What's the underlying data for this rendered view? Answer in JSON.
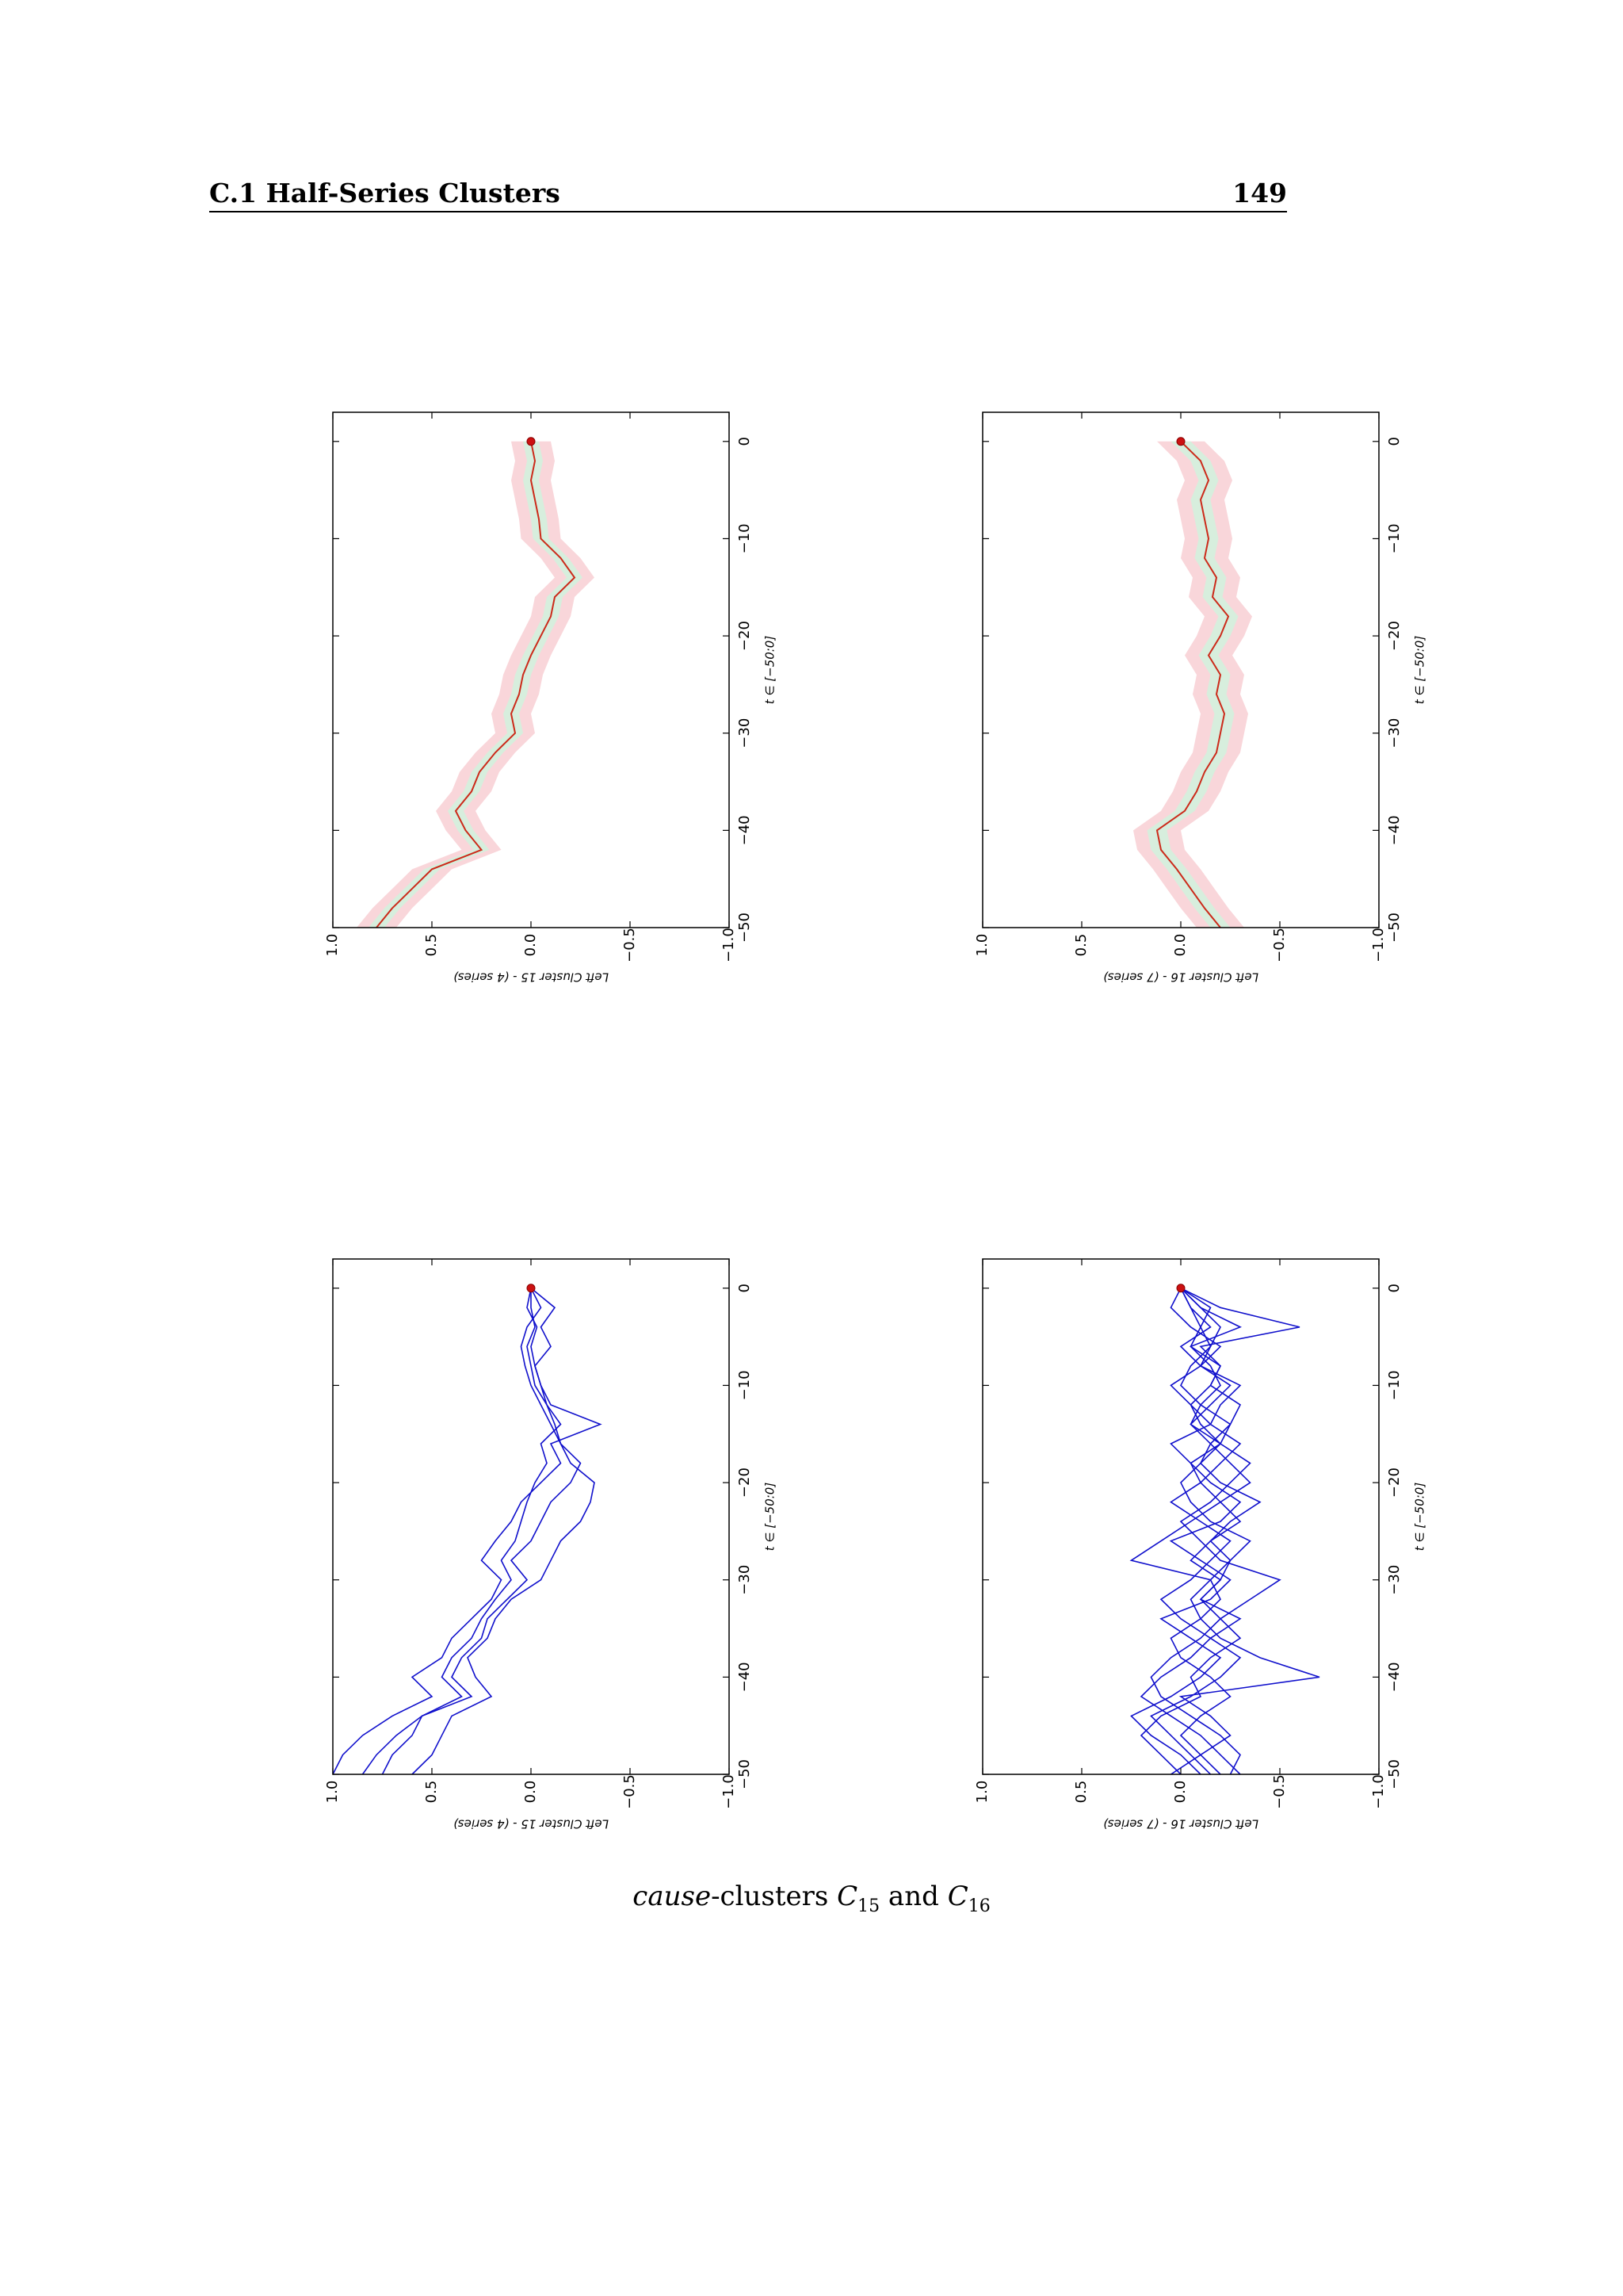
{
  "header": {
    "section_title": "C.1 Half-Series Clusters",
    "page_number": "149"
  },
  "caption": {
    "italic_part": "cause",
    "text_part": "-clusters ",
    "c15_symbol": "C",
    "c15_sub": "15",
    "and_text": " and ",
    "c16_symbol": "C",
    "c16_sub": "16"
  },
  "colors": {
    "series_line": "#1010cc",
    "mean_line": "#cc2a1a",
    "band_outer": "#f9d6da",
    "band_inner": "#d7eedd",
    "end_marker": "#cc1111"
  },
  "chart_data": [
    {
      "type": "area",
      "panel": "top-left",
      "ylabel": "Left Cluster 15 - (4 series)",
      "xlabel": "t ∈ [−50:0]",
      "xlim": [
        -50,
        0
      ],
      "ylim": [
        -1.0,
        1.0
      ],
      "x_ticks": [
        "−50",
        "−40",
        "−30",
        "−20",
        "−10",
        "0"
      ],
      "y_ticks": [
        "1.0",
        "0.5",
        "0.0",
        "−0.5",
        "−1.0"
      ],
      "x": [
        -50,
        -48,
        -46,
        -44,
        -42,
        -40,
        -38,
        -36,
        -34,
        -32,
        -30,
        -28,
        -26,
        -24,
        -22,
        -20,
        -18,
        -16,
        -14,
        -12,
        -10,
        -8,
        -6,
        -4,
        -2,
        0
      ],
      "mean": [
        0.78,
        0.7,
        0.6,
        0.5,
        0.25,
        0.33,
        0.38,
        0.3,
        0.26,
        0.18,
        0.08,
        0.1,
        0.06,
        0.04,
        0.0,
        -0.05,
        -0.1,
        -0.12,
        -0.22,
        -0.15,
        -0.05,
        -0.04,
        -0.02,
        0.0,
        -0.02,
        0.0
      ],
      "inner_band": 0.04,
      "outer_band": 0.1
    },
    {
      "type": "area",
      "panel": "top-right",
      "ylabel": "Left Cluster 16 - (7 series)",
      "xlabel": "t ∈ [−50:0]",
      "xlim": [
        -50,
        0
      ],
      "ylim": [
        -1.0,
        1.0
      ],
      "x_ticks": [
        "−50",
        "−40",
        "−30",
        "−20",
        "−10",
        "0"
      ],
      "y_ticks": [
        "1.0",
        "0.5",
        "0.0",
        "−0.5",
        "−1.0"
      ],
      "x": [
        -50,
        -48,
        -46,
        -44,
        -42,
        -40,
        -38,
        -36,
        -34,
        -32,
        -30,
        -28,
        -26,
        -24,
        -22,
        -20,
        -18,
        -16,
        -14,
        -12,
        -10,
        -8,
        -6,
        -4,
        -2,
        0
      ],
      "mean": [
        -0.2,
        -0.12,
        -0.05,
        0.02,
        0.1,
        0.12,
        -0.02,
        -0.08,
        -0.12,
        -0.18,
        -0.2,
        -0.22,
        -0.18,
        -0.2,
        -0.14,
        -0.2,
        -0.24,
        -0.16,
        -0.18,
        -0.12,
        -0.14,
        -0.12,
        -0.1,
        -0.14,
        -0.1,
        0.0
      ],
      "inner_band": 0.05,
      "outer_band": 0.12
    },
    {
      "type": "line",
      "panel": "bottom-left",
      "ylabel": "Left Cluster 15 - (4 series)",
      "xlabel": "t ∈ [−50:0]",
      "xlim": [
        -50,
        0
      ],
      "ylim": [
        -1.0,
        1.0
      ],
      "x_ticks": [
        "−50",
        "−40",
        "−30",
        "−20",
        "−10",
        "0"
      ],
      "y_ticks": [
        "1.0",
        "0.5",
        "0.0",
        "−0.5",
        "−1.0"
      ],
      "x": [
        -50,
        -48,
        -46,
        -44,
        -42,
        -40,
        -38,
        -36,
        -34,
        -32,
        -30,
        -28,
        -26,
        -24,
        -22,
        -20,
        -18,
        -16,
        -14,
        -12,
        -10,
        -8,
        -6,
        -4,
        -2,
        0
      ],
      "series": [
        {
          "values": [
            1.0,
            0.95,
            0.85,
            0.7,
            0.5,
            0.6,
            0.45,
            0.4,
            0.3,
            0.2,
            0.15,
            0.25,
            0.18,
            0.1,
            0.05,
            -0.05,
            -0.15,
            -0.1,
            -0.35,
            -0.1,
            -0.05,
            -0.02,
            -0.1,
            -0.05,
            -0.12,
            0.0
          ]
        },
        {
          "values": [
            0.75,
            0.7,
            0.6,
            0.55,
            0.3,
            0.4,
            0.35,
            0.25,
            0.22,
            0.12,
            0.02,
            0.1,
            0.0,
            -0.05,
            -0.1,
            -0.2,
            -0.25,
            -0.15,
            -0.1,
            -0.05,
            0.0,
            0.03,
            0.05,
            0.02,
            -0.05,
            0.0
          ]
        },
        {
          "values": [
            0.6,
            0.5,
            0.45,
            0.4,
            0.2,
            0.28,
            0.32,
            0.22,
            0.18,
            0.1,
            -0.05,
            -0.1,
            -0.15,
            -0.25,
            -0.3,
            -0.32,
            -0.2,
            -0.15,
            -0.12,
            -0.08,
            -0.05,
            -0.02,
            0.0,
            -0.03,
            0.02,
            0.0
          ]
        },
        {
          "values": [
            0.85,
            0.78,
            0.68,
            0.55,
            0.35,
            0.45,
            0.4,
            0.3,
            0.25,
            0.18,
            0.1,
            0.15,
            0.08,
            0.05,
            0.02,
            -0.02,
            -0.08,
            -0.05,
            -0.15,
            -0.08,
            -0.02,
            0.0,
            0.02,
            -0.02,
            0.0,
            0.0
          ]
        }
      ]
    },
    {
      "type": "line",
      "panel": "bottom-right",
      "ylabel": "Left Cluster 16 - (7 series)",
      "xlabel": "t ∈ [−50:0]",
      "xlim": [
        -50,
        0
      ],
      "ylim": [
        -1.0,
        1.0
      ],
      "x_ticks": [
        "−50",
        "−40",
        "−30",
        "−20",
        "−10",
        "0"
      ],
      "y_ticks": [
        "1.0",
        "0.5",
        "0.0",
        "−0.5",
        "−1.0"
      ],
      "x": [
        -50,
        -48,
        -46,
        -44,
        -42,
        -40,
        -38,
        -36,
        -34,
        -32,
        -30,
        -28,
        -26,
        -24,
        -22,
        -20,
        -18,
        -16,
        -14,
        -12,
        -10,
        -8,
        -6,
        -4,
        -2,
        0
      ],
      "series": [
        {
          "values": [
            -0.3,
            -0.2,
            -0.1,
            0.05,
            0.2,
            0.1,
            -0.05,
            -0.15,
            -0.3,
            -0.1,
            -0.2,
            -0.25,
            -0.15,
            -0.3,
            -0.2,
            -0.35,
            -0.25,
            -0.15,
            -0.05,
            -0.1,
            -0.2,
            -0.15,
            -0.05,
            -0.3,
            -0.1,
            0.0
          ]
        },
        {
          "values": [
            -0.1,
            0.0,
            0.15,
            0.25,
            0.05,
            -0.1,
            -0.2,
            -0.05,
            0.1,
            -0.15,
            -0.25,
            -0.1,
            0.05,
            -0.2,
            -0.3,
            -0.15,
            -0.05,
            -0.2,
            -0.25,
            -0.1,
            0.0,
            -0.05,
            -0.15,
            -0.1,
            -0.05,
            0.0
          ]
        },
        {
          "values": [
            0.05,
            -0.1,
            -0.25,
            -0.15,
            0.0,
            -0.7,
            -0.4,
            -0.2,
            -0.1,
            -0.05,
            -0.15,
            0.25,
            0.1,
            -0.05,
            -0.2,
            -0.1,
            -0.05,
            0.05,
            -0.15,
            -0.2,
            -0.3,
            -0.1,
            0.0,
            -0.15,
            -0.05,
            0.0
          ]
        },
        {
          "values": [
            -0.25,
            -0.3,
            -0.2,
            -0.05,
            0.1,
            0.15,
            0.05,
            -0.1,
            -0.2,
            -0.35,
            -0.5,
            -0.2,
            -0.1,
            0.0,
            -0.15,
            -0.25,
            -0.35,
            -0.2,
            -0.1,
            -0.05,
            -0.15,
            -0.2,
            -0.1,
            -0.6,
            -0.2,
            0.0
          ]
        },
        {
          "values": [
            -0.15,
            -0.05,
            0.05,
            0.15,
            -0.05,
            -0.2,
            -0.3,
            -0.15,
            0.0,
            0.1,
            -0.05,
            -0.15,
            -0.25,
            -0.1,
            0.05,
            -0.1,
            -0.2,
            -0.3,
            -0.15,
            -0.05,
            0.05,
            -0.1,
            -0.2,
            -0.05,
            0.05,
            0.0
          ]
        },
        {
          "values": [
            0.0,
            0.1,
            0.2,
            0.1,
            -0.1,
            -0.05,
            -0.15,
            -0.3,
            -0.2,
            -0.1,
            -0.2,
            -0.05,
            -0.15,
            -0.25,
            -0.4,
            -0.2,
            -0.1,
            -0.15,
            -0.25,
            -0.3,
            -0.15,
            -0.2,
            -0.05,
            -0.1,
            -0.15,
            0.0
          ]
        },
        {
          "values": [
            -0.2,
            -0.1,
            0.0,
            -0.1,
            -0.25,
            -0.15,
            0.0,
            0.05,
            -0.1,
            -0.2,
            -0.15,
            -0.25,
            -0.35,
            -0.15,
            -0.05,
            0.0,
            -0.1,
            -0.2,
            -0.05,
            -0.15,
            -0.25,
            -0.1,
            -0.15,
            -0.2,
            -0.1,
            0.0
          ]
        }
      ]
    }
  ]
}
